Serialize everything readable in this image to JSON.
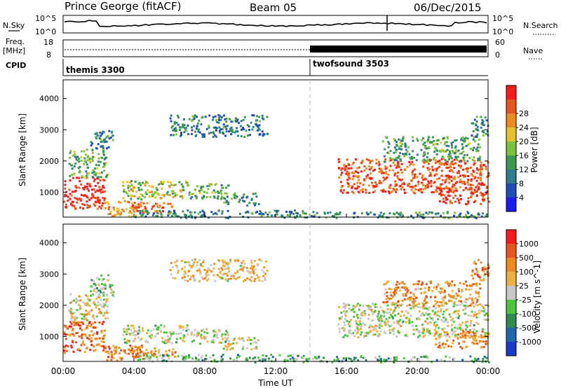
{
  "header": {
    "station": "Prince George (fitACF)",
    "beam": "Beam 05",
    "date": "06/Dec/2015"
  },
  "top_panels": {
    "nsky_label": "N.Sky",
    "nsky_ticks": [
      "10^5",
      "10^0"
    ],
    "nsearch_label": "N.Search",
    "nsearch_ticks": [
      "10^5",
      "10^0"
    ],
    "freq_label": "Freq.",
    "freq_unit": "[MHz]",
    "freq_ticks": [
      "18",
      "8"
    ],
    "nave_label": "Nave",
    "nave_ticks": [
      "60",
      "0"
    ],
    "cpid_label": "CPID",
    "modes": [
      {
        "name": "themis 3300",
        "start_hour": 0
      },
      {
        "name": "twofsound 3503",
        "start_hour": 14
      }
    ]
  },
  "chart_data": [
    {
      "type": "heatmap",
      "name": "power",
      "ylabel": "Slant Range [km]",
      "xlabel": "",
      "ylim": [
        200,
        4600
      ],
      "xlim": [
        0,
        24
      ],
      "y_ticks": [
        "1000",
        "2000",
        "3000",
        "4000"
      ],
      "colorbar_label": "Power [dB]",
      "colorbar_ticks": [
        "4",
        "8",
        "12",
        "16",
        "20",
        "24",
        "28"
      ],
      "colorbar_colors": [
        "#1a1aff",
        "#1f4db8",
        "#2e7d8c",
        "#3c9a4e",
        "#7cc23a",
        "#e6c22a",
        "#f08a1c",
        "#e8541a",
        "#ff1a1a"
      ],
      "regions": [
        {
          "t0": 0.0,
          "t1": 2.3,
          "r0": 500,
          "r1": 1500,
          "level": 0.95
        },
        {
          "t0": 0.3,
          "t1": 2.5,
          "r0": 1500,
          "r1": 2400,
          "level": 0.45
        },
        {
          "t0": 1.5,
          "t1": 2.8,
          "r0": 2300,
          "r1": 3000,
          "level": 0.3
        },
        {
          "t0": 2.3,
          "t1": 4.5,
          "r0": 250,
          "r1": 750,
          "level": 0.7
        },
        {
          "t0": 3.5,
          "t1": 6.3,
          "r0": 380,
          "r1": 700,
          "level": 0.82
        },
        {
          "t0": 3.3,
          "t1": 7.0,
          "r0": 800,
          "r1": 1400,
          "level": 0.55
        },
        {
          "t0": 7.0,
          "t1": 9.3,
          "r0": 800,
          "r1": 1300,
          "level": 0.45
        },
        {
          "t0": 9.0,
          "t1": 11.0,
          "r0": 600,
          "r1": 1000,
          "level": 0.35
        },
        {
          "t0": 6.0,
          "t1": 11.5,
          "r0": 2800,
          "r1": 3500,
          "level": 0.3
        },
        {
          "t0": 4.0,
          "t1": 14.0,
          "r0": 200,
          "r1": 450,
          "level": 0.3
        },
        {
          "t0": 14.0,
          "t1": 24.0,
          "r0": 200,
          "r1": 400,
          "level": 0.35
        },
        {
          "t0": 15.5,
          "t1": 24.0,
          "r0": 1000,
          "r1": 2100,
          "level": 0.85
        },
        {
          "t0": 21.0,
          "t1": 24.0,
          "r0": 650,
          "r1": 1200,
          "level": 0.9
        },
        {
          "t0": 18.0,
          "t1": 23.5,
          "r0": 2000,
          "r1": 2800,
          "level": 0.4
        },
        {
          "t0": 23.0,
          "t1": 24.0,
          "r0": 2800,
          "r1": 3500,
          "level": 0.3
        }
      ]
    },
    {
      "type": "heatmap",
      "name": "velocity",
      "ylabel": "Slant Range [km]",
      "xlabel": "Time UT",
      "ylim": [
        200,
        4600
      ],
      "xlim": [
        0,
        24
      ],
      "x_ticks": [
        "00:00",
        "04:00",
        "08:00",
        "12:00",
        "16:00",
        "20:00",
        "00:00"
      ],
      "y_ticks": [
        "1000",
        "2000",
        "3000",
        "4000"
      ],
      "colorbar_label": "Velocity [m s^-1]",
      "colorbar_ticks": [
        "1000",
        "500",
        "100",
        "25",
        "-25",
        "-100",
        "-500",
        "-1000"
      ],
      "colorbar_colors": [
        "#1a3acc",
        "#1f64b0",
        "#2f8c50",
        "#4cc43c",
        "#c8c8c8",
        "#f0b03c",
        "#f08a1c",
        "#e8541a",
        "#ff1a1a"
      ],
      "regions": [
        {
          "t0": 0.0,
          "t1": 2.3,
          "r0": 500,
          "r1": 1500,
          "level": 0.78
        },
        {
          "t0": 0.3,
          "t1": 2.5,
          "r0": 1500,
          "r1": 2400,
          "level": 0.55
        },
        {
          "t0": 1.5,
          "t1": 2.8,
          "r0": 2300,
          "r1": 3000,
          "level": 0.45
        },
        {
          "t0": 2.3,
          "t1": 4.5,
          "r0": 250,
          "r1": 750,
          "level": 0.75
        },
        {
          "t0": 3.5,
          "t1": 6.3,
          "r0": 380,
          "r1": 700,
          "level": 0.7
        },
        {
          "t0": 3.3,
          "t1": 7.0,
          "r0": 800,
          "r1": 1400,
          "level": 0.5
        },
        {
          "t0": 7.0,
          "t1": 9.3,
          "r0": 800,
          "r1": 1300,
          "level": 0.5
        },
        {
          "t0": 9.0,
          "t1": 11.0,
          "r0": 600,
          "r1": 1000,
          "level": 0.5
        },
        {
          "t0": 6.0,
          "t1": 11.5,
          "r0": 2800,
          "r1": 3500,
          "level": 0.6
        },
        {
          "t0": 4.0,
          "t1": 14.0,
          "r0": 200,
          "r1": 450,
          "level": 0.35
        },
        {
          "t0": 14.0,
          "t1": 24.0,
          "r0": 200,
          "r1": 400,
          "level": 0.35
        },
        {
          "t0": 15.5,
          "t1": 24.0,
          "r0": 1000,
          "r1": 2100,
          "level": 0.5
        },
        {
          "t0": 21.0,
          "t1": 24.0,
          "r0": 650,
          "r1": 1200,
          "level": 0.72
        },
        {
          "t0": 18.0,
          "t1": 23.5,
          "r0": 2000,
          "r1": 2800,
          "level": 0.7
        },
        {
          "t0": 23.0,
          "t1": 24.0,
          "r0": 2800,
          "r1": 3500,
          "level": 0.75
        }
      ]
    }
  ]
}
